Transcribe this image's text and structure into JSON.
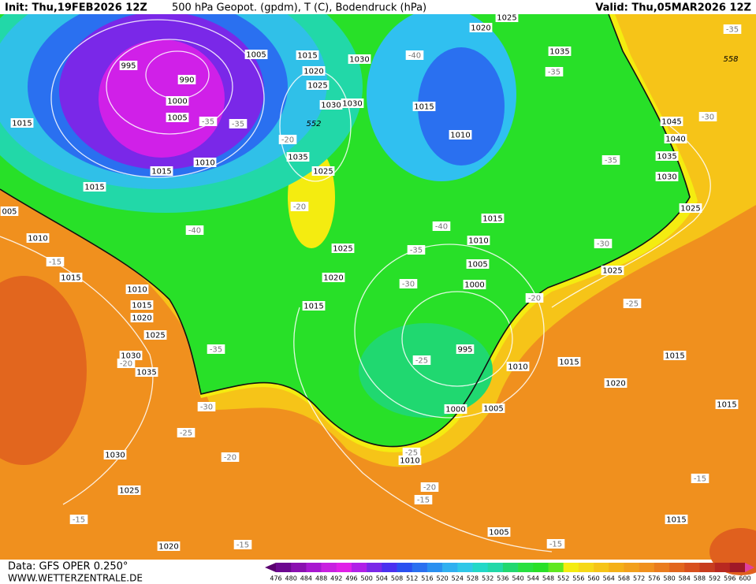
{
  "header": {
    "init": "Init: Thu,19FEB2026 12Z",
    "title": "500 hPa Geopot. (gpdm), T (C), Bodendruck (hPa)",
    "valid": "Valid: Thu,05MAR2026 12Z"
  },
  "footer": {
    "source": "Data: GFS OPER 0.250°",
    "website": "WWW.WETTERZENTRALE.DE"
  },
  "pressure_labels": [
    995,
    990,
    1000,
    1005,
    1010,
    1015,
    1015,
    1015,
    1005,
    1015,
    1020,
    1025,
    1030,
    1030,
    1030,
    1035,
    1025,
    1020,
    1025,
    1035,
    1015,
    1010,
    1045,
    1040,
    1035,
    1030,
    1025,
    1025,
    1015,
    1010,
    1005,
    1000,
    995,
    1025,
    1020,
    1015,
    1010,
    1015,
    1010,
    1015,
    1020,
    1025,
    1030,
    1035,
    1030,
    1025,
    1020,
    1000,
    1010,
    1005,
    1010,
    1015,
    1020,
    1015,
    1015,
    1015,
    1005,
    "005"
  ],
  "geopotential_labels": [
    552,
    558
  ],
  "temperature_labels": [
    -40,
    -35,
    -35,
    -35,
    -30,
    -35,
    -40,
    -20,
    -40,
    -35,
    -30,
    -30,
    -20,
    -25,
    -35,
    -25,
    -30,
    -25,
    -20,
    -25,
    -20,
    -15,
    -15,
    -20,
    -15,
    -15,
    -15,
    -15,
    -35,
    -20
  ],
  "colorbar": {
    "labels": [
      476,
      480,
      484,
      488,
      492,
      496,
      500,
      504,
      508,
      512,
      516,
      520,
      524,
      528,
      532,
      536,
      540,
      544,
      548,
      552,
      556,
      560,
      564,
      568,
      572,
      576,
      580,
      584,
      588,
      592,
      596,
      600
    ],
    "colors": [
      "#5a0070",
      "#6c0890",
      "#8a10b0",
      "#a818d0",
      "#c820e0",
      "#e020e8",
      "#b020e8",
      "#7a28e8",
      "#4a30f0",
      "#2a50f0",
      "#2a70f0",
      "#2a90f0",
      "#30b0f0",
      "#30c8e8",
      "#22d8c8",
      "#22d8a8",
      "#20d870",
      "#28e040",
      "#28e028",
      "#60e820",
      "#f4ec10",
      "#f6d818",
      "#f6c418",
      "#f4b018",
      "#f2a01c",
      "#f0901e",
      "#ea7c1e",
      "#e2661e",
      "#d8501e",
      "#c83c1e",
      "#b82820",
      "#a01828",
      "#e040a0"
    ]
  }
}
